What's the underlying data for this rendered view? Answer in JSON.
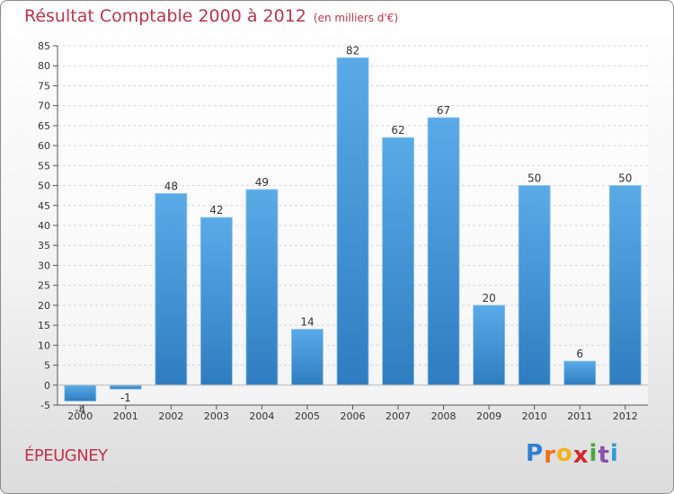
{
  "chart_data": {
    "type": "bar",
    "title": "Résultat Comptable 2000 à 2012",
    "subtitle": "(en milliers d'€)",
    "categories": [
      "2000",
      "2001",
      "2002",
      "2003",
      "2004",
      "2005",
      "2006",
      "2007",
      "2008",
      "2009",
      "2010",
      "2011",
      "2012"
    ],
    "values": [
      -4,
      -1,
      48,
      42,
      49,
      14,
      82,
      62,
      67,
      20,
      50,
      6,
      50
    ],
    "data_labels": [
      "-4",
      "-1",
      "48",
      "42",
      "49",
      "14",
      "82",
      "62",
      "67",
      "20",
      "50",
      "6",
      "50"
    ],
    "xlabel": "",
    "ylabel": "",
    "ylim": [
      -5,
      85
    ],
    "yticks": [
      -5,
      0,
      5,
      10,
      15,
      20,
      25,
      30,
      35,
      40,
      45,
      50,
      55,
      60,
      65,
      70,
      75,
      80,
      85
    ],
    "grid": true,
    "legend": "none",
    "bar_color": "#4e9fe0"
  },
  "town": "ÉPEUGNEY",
  "logo": {
    "letters": [
      "P",
      "r",
      "o",
      "x",
      "i",
      "t",
      "i"
    ],
    "colors": [
      "#2e7fd0",
      "#e8731f",
      "#f2b21a",
      "#d6262f",
      "#4aaa3a",
      "#8c4fb2",
      "#2e9bd6"
    ]
  }
}
